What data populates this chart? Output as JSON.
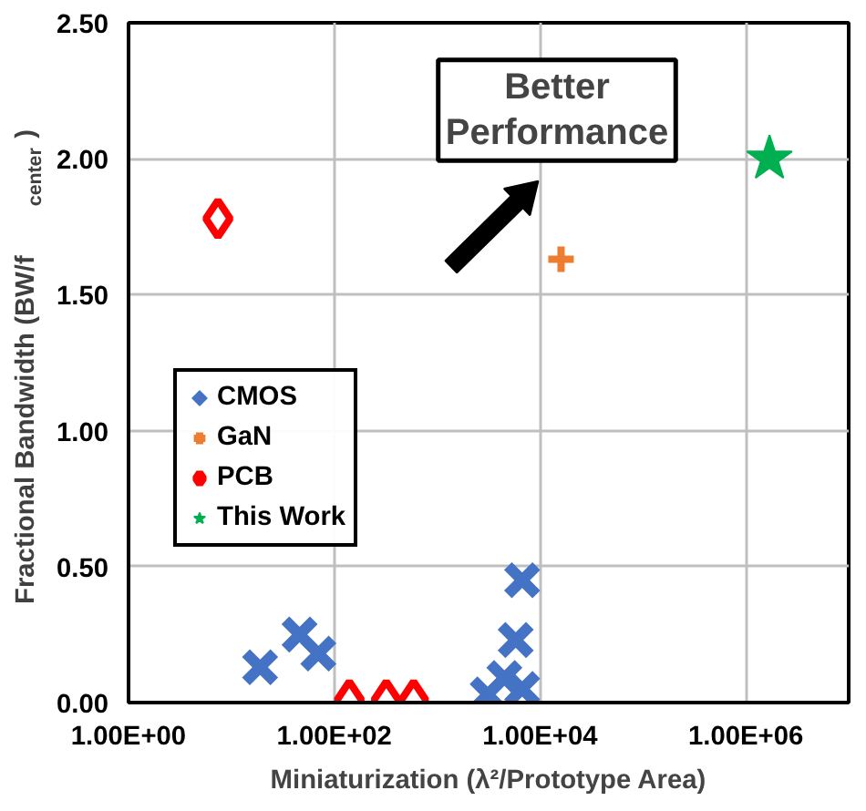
{
  "chart_data": {
    "type": "scatter",
    "xlabel": "Miniaturization (λ²/Prototype Area)",
    "ylabel": "Fractional Bandwidth (BW/f$_{center}$)",
    "log": "x",
    "grid": true,
    "legend": "left",
    "xlim": [
      1,
      10000000
    ],
    "xticks": [
      {
        "value": 1,
        "label": "1.00E+00"
      },
      {
        "value": 100,
        "label": "1.00E+02"
      },
      {
        "value": 10000,
        "label": "1.00E+04"
      },
      {
        "value": 1000000,
        "label": "1.00E+06"
      }
    ],
    "ylim": [
      0,
      2.5
    ],
    "yticks": [
      {
        "value": 0,
        "label": "0.00"
      },
      {
        "value": 0.5,
        "label": "0.50"
      },
      {
        "value": 1,
        "label": "1.00"
      },
      {
        "value": 1.5,
        "label": "1.50"
      },
      {
        "value": 2,
        "label": "2.00"
      },
      {
        "value": 2.5,
        "label": "2.50"
      }
    ],
    "annotations": [
      "Better Performance"
    ],
    "series": [
      {
        "name": "CMOS",
        "color": "#4472c4",
        "marker": "x",
        "x": [
          19,
          46,
          70,
          3100,
          4500,
          6700,
          5800,
          6700
        ],
        "values": [
          0.13,
          0.25,
          0.18,
          0.03,
          0.09,
          0.05,
          0.23,
          0.45
        ]
      },
      {
        "name": "GaN",
        "color": "#ed7d31",
        "marker": "cross",
        "x": [
          16000
        ],
        "values": [
          1.63
        ]
      },
      {
        "name": "PCB",
        "color": "#ff0000",
        "marker": "diamond",
        "x": [
          7.4,
          140,
          320,
          590
        ],
        "values": [
          1.78,
          0.01,
          0.01,
          0.01
        ]
      },
      {
        "name": "This Work",
        "color": "#00b050",
        "marker": "star",
        "x": [
          1700000
        ],
        "values": [
          2.0
        ]
      }
    ]
  }
}
